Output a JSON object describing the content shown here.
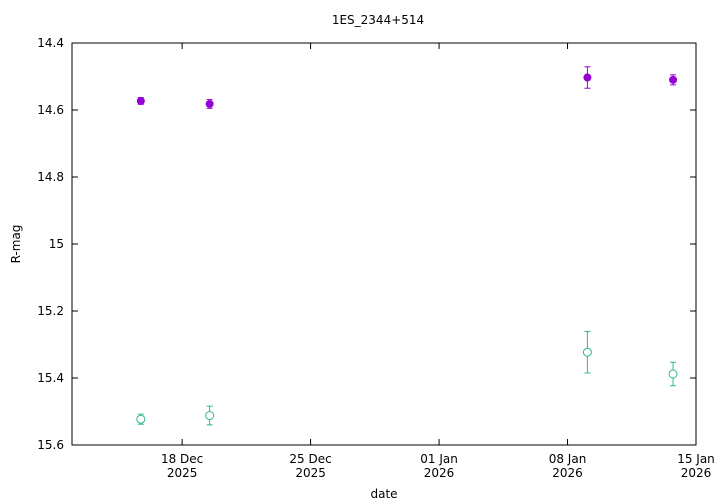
{
  "chart_data": {
    "type": "scatter",
    "title": "1ES_2344+514",
    "xlabel": "date",
    "ylabel": "R-mag",
    "x_range": [
      "2025-12-12",
      "2026-01-15"
    ],
    "ylim": [
      14.4,
      15.6
    ],
    "y_inverted": true,
    "grid": false,
    "legend": "none",
    "x_ticks": [
      {
        "date": "2025-12-18",
        "line1": "18 Dec",
        "line2": "2025"
      },
      {
        "date": "2025-12-25",
        "line1": "25 Dec",
        "line2": "2025"
      },
      {
        "date": "2026-01-01",
        "line1": "01 Jan",
        "line2": "2026"
      },
      {
        "date": "2026-01-08",
        "line1": "08 Jan",
        "line2": "2026"
      },
      {
        "date": "2026-01-15",
        "line1": "15 Jan",
        "line2": "2026"
      }
    ],
    "y_ticks": [
      "14.4",
      "14.6",
      "14.8",
      "15",
      "15.2",
      "15.4",
      "15.6"
    ],
    "series": [
      {
        "marker": "filled-circle",
        "color": "#9400d3",
        "points": [
          {
            "date": "2025-12-15T18:00",
            "y": 14.573,
            "err": 0.01
          },
          {
            "date": "2025-12-19T12:00",
            "y": 14.582,
            "err": 0.013
          },
          {
            "date": "2026-01-09T02:00",
            "y": 14.503,
            "err": 0.032
          },
          {
            "date": "2026-01-13T18:00",
            "y": 14.51,
            "err": 0.015
          }
        ]
      },
      {
        "marker": "open-circle",
        "color": "#2fbc7e",
        "points": [
          {
            "date": "2025-12-15T18:00",
            "y": 15.523,
            "err": 0.015
          },
          {
            "date": "2025-12-19T12:00",
            "y": 15.512,
            "err": 0.028
          },
          {
            "date": "2026-01-09T02:00",
            "y": 15.323,
            "err": 0.062
          },
          {
            "date": "2026-01-13T18:00",
            "y": 15.388,
            "err": 0.035
          }
        ]
      }
    ]
  }
}
